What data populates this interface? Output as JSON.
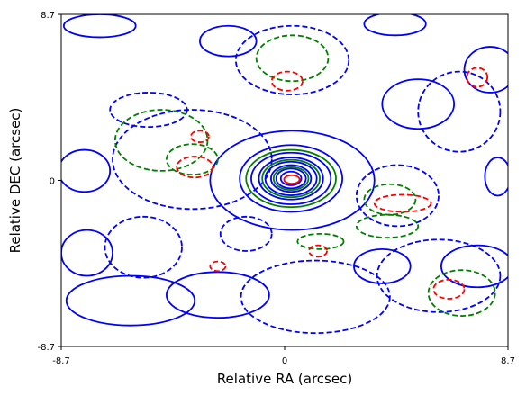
{
  "chart_data": {
    "type": "contour",
    "xlabel": "Relative RA (arcsec)",
    "ylabel": "Relative DEC (arcsec)",
    "xlim": [
      -8.7,
      8.7
    ],
    "ylim": [
      -8.7,
      8.7
    ],
    "xticks": [
      {
        "value": -8.7,
        "label": "-8.7"
      },
      {
        "value": 0,
        "label": "0"
      },
      {
        "value": 8.7,
        "label": "8.7"
      }
    ],
    "yticks": [
      {
        "value": -8.7,
        "label": "-8.7"
      },
      {
        "value": 0,
        "label": "0"
      },
      {
        "value": 8.7,
        "label": "8.7"
      }
    ],
    "grid": false,
    "series": [
      {
        "color": "#0000ff",
        "peak_rings": [
          {
            "cx": 0.25,
            "cy": 0.1,
            "rx": 2.0,
            "ry": 1.75,
            "style": "solid"
          },
          {
            "cx": 0.25,
            "cy": 0.1,
            "rx": 1.55,
            "ry": 1.35,
            "style": "solid"
          },
          {
            "cx": 0.25,
            "cy": 0.1,
            "rx": 1.25,
            "ry": 1.1,
            "style": "solid"
          },
          {
            "cx": 0.25,
            "cy": 0.1,
            "rx": 1.0,
            "ry": 0.88,
            "style": "solid"
          },
          {
            "cx": 0.25,
            "cy": 0.1,
            "rx": 0.78,
            "ry": 0.7,
            "style": "solid"
          },
          {
            "cx": 0.25,
            "cy": 0.1,
            "rx": 0.58,
            "ry": 0.52,
            "style": "solid"
          },
          {
            "cx": 0.25,
            "cy": 0.1,
            "rx": 0.4,
            "ry": 0.36,
            "style": "solid"
          },
          {
            "cx": 0.3,
            "cy": 0.0,
            "rx": 3.2,
            "ry": 2.6,
            "style": "solid"
          }
        ],
        "features": [
          {
            "cx": 7.5,
            "cy": -4.5,
            "rx": 1.4,
            "ry": 1.1,
            "style": "solid"
          },
          {
            "cx": 3.8,
            "cy": -4.5,
            "rx": 1.1,
            "ry": 0.9,
            "style": "solid"
          },
          {
            "cx": -2.6,
            "cy": -6.0,
            "rx": 2.0,
            "ry": 1.2,
            "style": "solid"
          },
          {
            "cx": -6.0,
            "cy": -6.3,
            "rx": 2.5,
            "ry": 1.3,
            "style": "solid"
          },
          {
            "cx": -7.8,
            "cy": 0.5,
            "rx": 1.0,
            "ry": 1.1,
            "style": "solid"
          },
          {
            "cx": -7.7,
            "cy": -3.8,
            "rx": 1.0,
            "ry": 1.2,
            "style": "solid"
          },
          {
            "cx": 5.2,
            "cy": 4.0,
            "rx": 1.4,
            "ry": 1.3,
            "style": "solid"
          },
          {
            "cx": 8.3,
            "cy": 0.2,
            "rx": 0.5,
            "ry": 1.0,
            "style": "solid"
          },
          {
            "cx": 4.3,
            "cy": 8.2,
            "rx": 1.2,
            "ry": 0.6,
            "style": "solid"
          },
          {
            "cx": -7.2,
            "cy": 8.1,
            "rx": 1.4,
            "ry": 0.6,
            "style": "solid"
          },
          {
            "cx": -2.2,
            "cy": 7.3,
            "rx": 1.1,
            "ry": 0.8,
            "style": "solid"
          },
          {
            "cx": 8.0,
            "cy": 5.8,
            "rx": 1.0,
            "ry": 1.2,
            "style": "solid"
          },
          {
            "cx": -3.6,
            "cy": 1.1,
            "rx": 3.1,
            "ry": 2.6,
            "style": "dashed"
          },
          {
            "cx": -5.3,
            "cy": 3.7,
            "rx": 1.5,
            "ry": 0.9,
            "style": "dashed"
          },
          {
            "cx": 0.3,
            "cy": 6.3,
            "rx": 2.2,
            "ry": 1.8,
            "style": "dashed"
          },
          {
            "cx": 4.4,
            "cy": -0.8,
            "rx": 1.6,
            "ry": 1.6,
            "style": "dashed"
          },
          {
            "cx": 6.0,
            "cy": -5.0,
            "rx": 2.4,
            "ry": 1.9,
            "style": "dashed"
          },
          {
            "cx": -5.5,
            "cy": -3.5,
            "rx": 1.5,
            "ry": 1.6,
            "style": "dashed"
          },
          {
            "cx": 1.2,
            "cy": -6.1,
            "rx": 2.9,
            "ry": 1.9,
            "style": "dashed"
          },
          {
            "cx": 6.8,
            "cy": 3.6,
            "rx": 1.6,
            "ry": 2.1,
            "style": "dashed"
          },
          {
            "cx": -1.5,
            "cy": -2.8,
            "rx": 1.0,
            "ry": 0.9,
            "style": "dashed"
          }
        ]
      },
      {
        "color": "#008000",
        "peak_rings": [
          {
            "cx": 0.25,
            "cy": 0.1,
            "rx": 1.75,
            "ry": 1.5,
            "style": "solid"
          },
          {
            "cx": 0.25,
            "cy": 0.1,
            "rx": 1.12,
            "ry": 0.98,
            "style": "solid"
          },
          {
            "cx": 0.25,
            "cy": 0.1,
            "rx": 0.68,
            "ry": 0.6,
            "style": "solid"
          }
        ],
        "features": [
          {
            "cx": -4.8,
            "cy": 2.1,
            "rx": 1.8,
            "ry": 1.6,
            "style": "dashed"
          },
          {
            "cx": 0.3,
            "cy": 6.4,
            "rx": 1.4,
            "ry": 1.2,
            "style": "dashed"
          },
          {
            "cx": 4.0,
            "cy": -2.4,
            "rx": 1.2,
            "ry": 0.6,
            "style": "dashed"
          },
          {
            "cx": 6.9,
            "cy": -5.9,
            "rx": 1.3,
            "ry": 1.2,
            "style": "dashed"
          },
          {
            "cx": 1.4,
            "cy": -3.2,
            "rx": 0.9,
            "ry": 0.4,
            "style": "dashed"
          },
          {
            "cx": -3.6,
            "cy": 1.1,
            "rx": 1.0,
            "ry": 0.8,
            "style": "dashed"
          },
          {
            "cx": 4.1,
            "cy": -1.0,
            "rx": 1.0,
            "ry": 0.8,
            "style": "dashed"
          }
        ]
      },
      {
        "color": "#ff0000",
        "peak_rings": [
          {
            "cx": 0.28,
            "cy": 0.05,
            "rx": 0.3,
            "ry": 0.22,
            "style": "solid"
          }
        ],
        "features": [
          {
            "cx": -3.5,
            "cy": 0.7,
            "rx": 0.7,
            "ry": 0.55,
            "style": "dashed"
          },
          {
            "cx": 4.6,
            "cy": -1.2,
            "rx": 1.1,
            "ry": 0.45,
            "style": "dashed"
          },
          {
            "cx": 0.1,
            "cy": 5.2,
            "rx": 0.6,
            "ry": 0.5,
            "style": "dashed"
          },
          {
            "cx": 6.4,
            "cy": -5.7,
            "rx": 0.6,
            "ry": 0.5,
            "style": "dashed"
          },
          {
            "cx": 7.5,
            "cy": 5.4,
            "rx": 0.4,
            "ry": 0.5,
            "style": "dashed"
          },
          {
            "cx": -2.6,
            "cy": -4.5,
            "rx": 0.3,
            "ry": 0.25,
            "style": "dashed"
          },
          {
            "cx": -3.3,
            "cy": 2.3,
            "rx": 0.35,
            "ry": 0.3,
            "style": "dashed"
          },
          {
            "cx": 1.3,
            "cy": -3.7,
            "rx": 0.35,
            "ry": 0.3,
            "style": "dashed"
          }
        ]
      }
    ]
  }
}
